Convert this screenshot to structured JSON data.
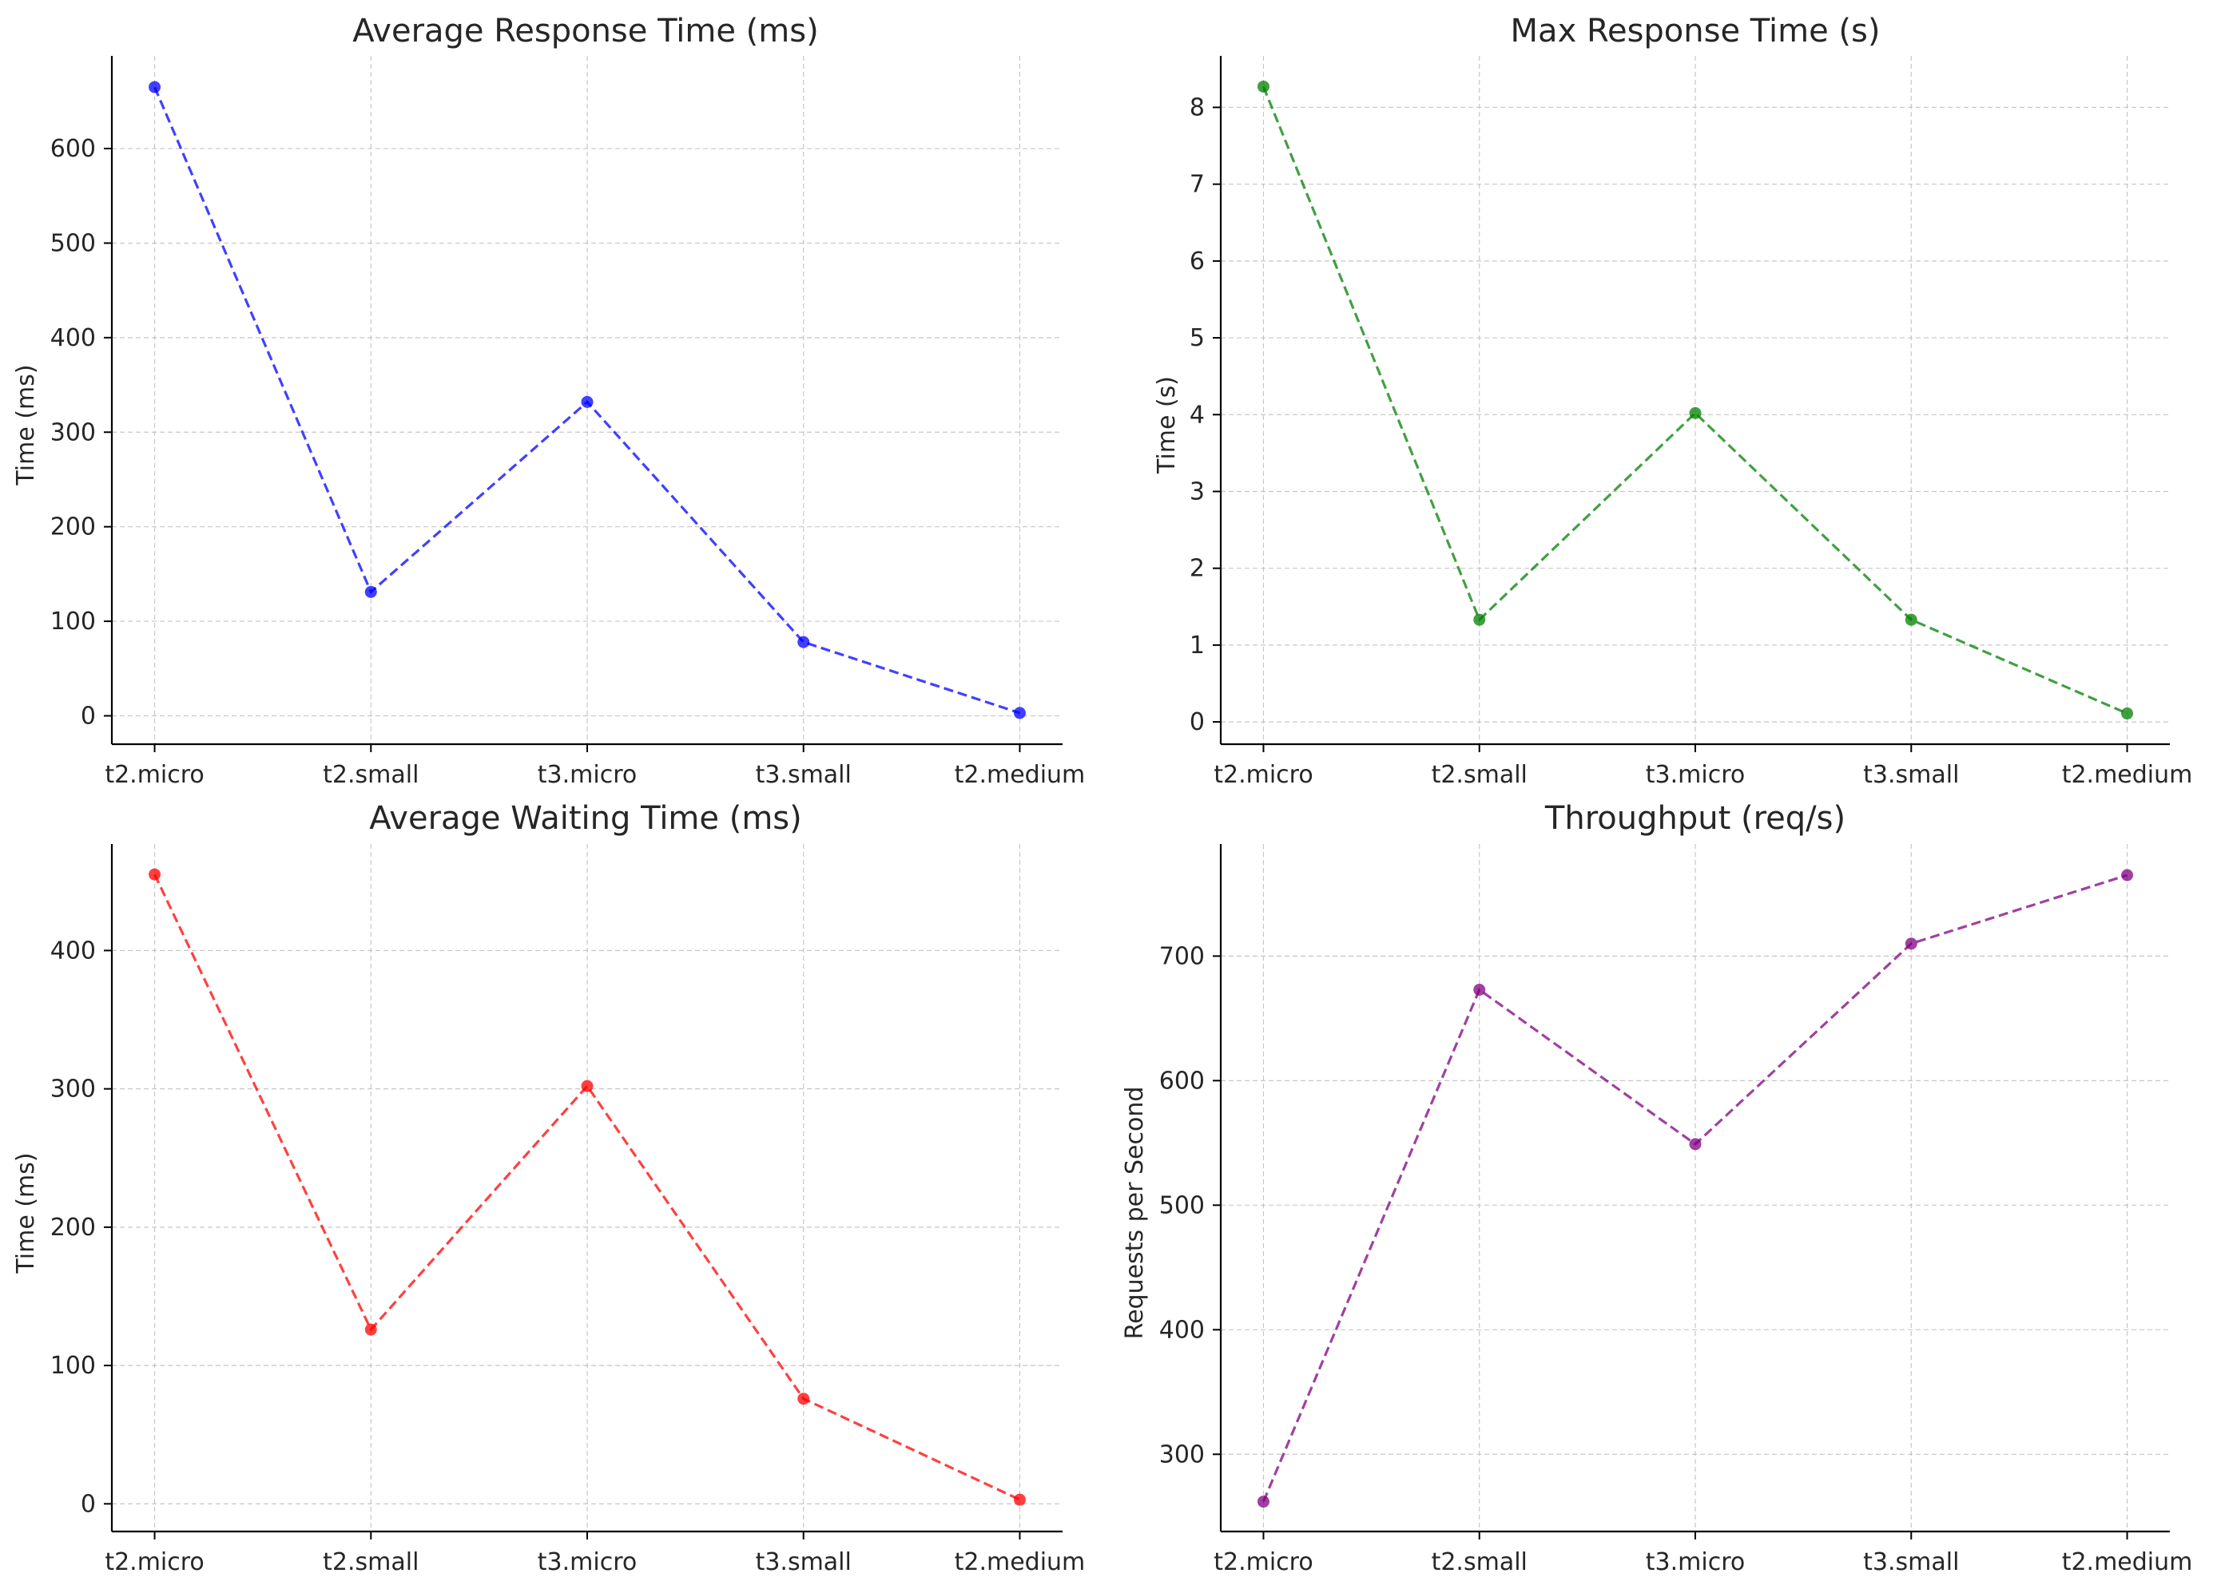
{
  "chart_data": [
    {
      "type": "line",
      "title": "Average Response Time (ms)",
      "xlabel": "",
      "ylabel": "Time (ms)",
      "categories": [
        "t2.micro",
        "t2.small",
        "t3.micro",
        "t3.small",
        "t2.medium"
      ],
      "series": [
        {
          "values": [
            665,
            131,
            332,
            78,
            3
          ],
          "color": "#0000ff"
        }
      ],
      "ylim": [
        -30,
        698
      ],
      "yticks": [
        0,
        100,
        200,
        300,
        400,
        500,
        600
      ],
      "grid": true,
      "line_style": "dashed",
      "marker": "circle"
    },
    {
      "type": "line",
      "title": "Max Response Time (s)",
      "xlabel": "",
      "ylabel": "Time (s)",
      "categories": [
        "t2.micro",
        "t2.small",
        "t3.micro",
        "t3.small",
        "t2.medium"
      ],
      "series": [
        {
          "values": [
            8.27,
            1.33,
            4.02,
            1.33,
            0.11
          ],
          "color": "#008000"
        }
      ],
      "ylim": [
        -0.29,
        8.67
      ],
      "yticks": [
        0,
        1,
        2,
        3,
        4,
        5,
        6,
        7,
        8
      ],
      "grid": true,
      "line_style": "dashed",
      "marker": "circle"
    },
    {
      "type": "line",
      "title": "Average Waiting Time (ms)",
      "xlabel": "",
      "ylabel": "Time (ms)",
      "categories": [
        "t2.micro",
        "t2.small",
        "t3.micro",
        "t3.small",
        "t2.medium"
      ],
      "series": [
        {
          "values": [
            455,
            126,
            302,
            76,
            3
          ],
          "color": "#ff0000"
        }
      ],
      "ylim": [
        -20,
        477
      ],
      "yticks": [
        0,
        100,
        200,
        300,
        400
      ],
      "grid": true,
      "line_style": "dashed",
      "marker": "circle"
    },
    {
      "type": "line",
      "title": "Throughput (req/s)",
      "xlabel": "",
      "ylabel": "Requests per Second",
      "categories": [
        "t2.micro",
        "t2.small",
        "t3.micro",
        "t3.small",
        "t2.medium"
      ],
      "series": [
        {
          "values": [
            262,
            673,
            549,
            710,
            765
          ],
          "color": "#800080"
        }
      ],
      "ylim": [
        238,
        790
      ],
      "yticks": [
        300,
        400,
        500,
        600,
        700
      ],
      "grid": true,
      "line_style": "dashed",
      "marker": "circle"
    }
  ]
}
